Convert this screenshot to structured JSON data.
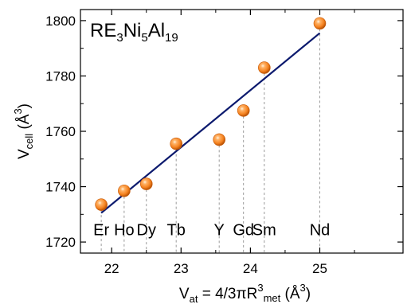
{
  "chart_data": {
    "type": "scatter",
    "title": "",
    "annotation": {
      "base": "RE",
      "parts": [
        {
          "text": "RE",
          "sub": false
        },
        {
          "text": "3",
          "sub": true
        },
        {
          "text": "Ni",
          "sub": false
        },
        {
          "text": "5",
          "sub": true
        },
        {
          "text": "Al",
          "sub": false
        },
        {
          "text": "19",
          "sub": true
        }
      ]
    },
    "xlabel": {
      "main": "V",
      "main_sub": "at",
      "mid": " = 4/3πR",
      "mid_sup": "3",
      "mid_sub": "met",
      "unit_open": " (Å",
      "unit_sup": "3",
      "unit_close": ")"
    },
    "ylabel": {
      "main": "V",
      "main_sub": "cell",
      "unit_open": " (Å",
      "unit_sup": "3",
      "unit_close": ")"
    },
    "xlim": [
      21.55,
      26.2
    ],
    "ylim": [
      1716,
      1804
    ],
    "xticks": [
      22,
      23,
      24,
      25
    ],
    "yticks": [
      1720,
      1740,
      1760,
      1780,
      1800
    ],
    "points": [
      {
        "label": "Er",
        "x": 21.85,
        "y": 1733.5
      },
      {
        "label": "Ho",
        "x": 22.18,
        "y": 1738.5
      },
      {
        "label": "Dy",
        "x": 22.5,
        "y": 1741
      },
      {
        "label": "Tb",
        "x": 22.93,
        "y": 1755.5
      },
      {
        "label": "Y",
        "x": 23.55,
        "y": 1757
      },
      {
        "label": "Gd",
        "x": 23.9,
        "y": 1767.5
      },
      {
        "label": "Sm",
        "x": 24.2,
        "y": 1783
      },
      {
        "label": "Nd",
        "x": 25.0,
        "y": 1799
      }
    ],
    "label_y": 1724.5,
    "fit_line": {
      "x": [
        21.85,
        25.0
      ],
      "y": [
        1730.5,
        1795.5
      ]
    },
    "colors": {
      "marker": "#f5821f",
      "marker_dark": "#c75a08",
      "fit": "#0c1a6e",
      "dropline": "#9a9a9a"
    }
  }
}
